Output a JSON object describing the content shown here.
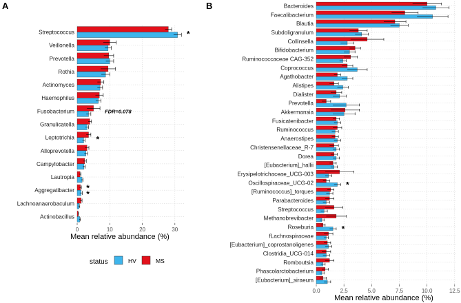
{
  "colors": {
    "HV": "#3EB5EC",
    "MS": "#E3111B",
    "grid": "#bdbdbd",
    "errorbar": "#000000"
  },
  "legend": {
    "title": "status",
    "items": [
      {
        "key": "HV",
        "label": "HV",
        "color": "#3EB5EC"
      },
      {
        "key": "MS",
        "label": "MS",
        "color": "#E3111B"
      }
    ]
  },
  "chart_data": [
    {
      "panel": "A",
      "type": "bar",
      "orientation": "horizontal",
      "xlabel": "Mean relative abundance (%)",
      "xlim": [
        0,
        33
      ],
      "xticks": [
        0,
        10,
        20,
        30
      ],
      "categories": [
        "Streptococcus",
        "Veillonella",
        "Prevotella",
        "Rothia",
        "Actinomyces",
        "Haemophilus",
        "Fusobacterium",
        "Granulicatella",
        "Leptotrichia",
        "Alloprevotella",
        "Campylobacter",
        "Lautropia",
        "Aggregatibacter",
        "Lachnoanaerobaculum",
        "Actinobacillus"
      ],
      "series": [
        {
          "name": "MS",
          "values": [
            28.0,
            10.0,
            9.7,
            9.5,
            7.2,
            6.8,
            5.0,
            3.9,
            3.5,
            3.0,
            2.3,
            0.9,
            1.0,
            1.2,
            0.3
          ],
          "errors": [
            1.0,
            2.0,
            1.5,
            2.3,
            1.0,
            1.2,
            2.0,
            0.5,
            0.7,
            0.6,
            0.5,
            0.3,
            0.3,
            0.3,
            0.1
          ]
        },
        {
          "name": "HV",
          "values": [
            30.8,
            9.5,
            10.0,
            8.7,
            7.0,
            6.5,
            3.5,
            3.0,
            2.0,
            2.7,
            2.1,
            1.5,
            1.2,
            0.6,
            0.8
          ],
          "errors": [
            1.2,
            1.0,
            1.2,
            1.3,
            0.8,
            0.8,
            0.7,
            0.5,
            0.4,
            0.5,
            0.4,
            0.3,
            0.4,
            0.2,
            0.2
          ]
        }
      ],
      "annotations": [
        {
          "category": "Streptococcus",
          "text": "*"
        },
        {
          "category": "Fusobacterium",
          "text": "FDR=0.078"
        },
        {
          "category": "Leptotrichia",
          "text": "*"
        },
        {
          "category": "Aggregatibacter",
          "text": "**"
        }
      ]
    },
    {
      "panel": "B",
      "type": "bar",
      "orientation": "horizontal",
      "xlabel": "Mean relative abundance (%)",
      "xlim": [
        0,
        12.7
      ],
      "xticks": [
        0.0,
        2.5,
        5.0,
        7.5,
        10.0,
        12.5
      ],
      "xtick_labels": [
        "0.0",
        "2.5",
        "5.0",
        "7.5",
        "10.0",
        "12.5"
      ],
      "categories": [
        "Bacteroides",
        "Faecalibacterium",
        "Blautia",
        "Subdoligranulum",
        "Collinsella",
        "Bifidobacterium",
        "Ruminococcaceae CAG-352",
        "Coprococcus",
        "Agathobacter",
        "Alistipes",
        "Dialister",
        "Prevotella",
        "Akkermansia",
        "Fusicatenibacter",
        "Ruminococcus",
        "Anaerostipes",
        "Christensenellaceae_R-7",
        "Dorea",
        "[Eubacterium]_hallii",
        "Erysipelotrichaceae_UCG-003",
        "Oscillospiraceae_UCG-02",
        "[Ruminococcus]_torques",
        "Parabacteroides",
        "Streptococcus",
        "Methanobrevibacter",
        "Roseburia",
        "fLachnospiraceae",
        "[Eubacterium]_coprostanoligenes",
        "Clostridia_UCG-014",
        "Romboutsia",
        "Phascolarctobacterium",
        "[Eubacterium]_siraeum"
      ],
      "series": [
        {
          "name": "MS",
          "values": [
            10.0,
            8.0,
            7.1,
            3.8,
            4.6,
            3.5,
            3.1,
            2.8,
            1.9,
            1.6,
            1.8,
            0.9,
            2.6,
            1.8,
            1.9,
            1.7,
            1.6,
            1.6,
            1.5,
            2.1,
            0.9,
            1.3,
            1.2,
            1.6,
            1.8,
            0.6,
            1.1,
            1.0,
            0.9,
            1.2,
            0.8,
            0.6
          ],
          "errors": [
            1.3,
            1.2,
            1.0,
            0.8,
            1.5,
            0.5,
            0.6,
            0.5,
            0.3,
            0.4,
            0.5,
            0.4,
            1.3,
            0.3,
            0.4,
            0.3,
            0.4,
            0.3,
            0.3,
            1.3,
            0.3,
            0.3,
            0.4,
            0.8,
            0.9,
            0.2,
            0.4,
            0.3,
            0.4,
            0.4,
            0.3,
            0.3
          ]
        },
        {
          "name": "HV",
          "values": [
            10.8,
            10.5,
            7.5,
            4.1,
            2.8,
            3.0,
            2.4,
            3.7,
            2.8,
            2.4,
            2.1,
            2.7,
            2.5,
            1.9,
            1.7,
            1.9,
            1.8,
            1.8,
            1.6,
            1.1,
            1.9,
            1.2,
            0.9,
            0.7,
            0.5,
            1.5,
            0.9,
            1.1,
            0.9,
            0.6,
            0.5,
            1.0
          ],
          "errors": [
            1.2,
            1.4,
            0.8,
            0.6,
            0.6,
            0.5,
            0.3,
            0.9,
            0.5,
            0.5,
            0.6,
            1.2,
            1.0,
            0.3,
            0.3,
            0.3,
            0.3,
            0.3,
            0.3,
            0.3,
            0.3,
            0.3,
            0.3,
            0.3,
            0.2,
            0.3,
            0.2,
            0.3,
            0.3,
            0.2,
            0.2,
            0.3
          ]
        }
      ],
      "annotations": [
        {
          "category": "Oscillospiraceae_UCG-02",
          "text": "*"
        },
        {
          "category": "Roseburia",
          "text": "*"
        }
      ]
    }
  ]
}
